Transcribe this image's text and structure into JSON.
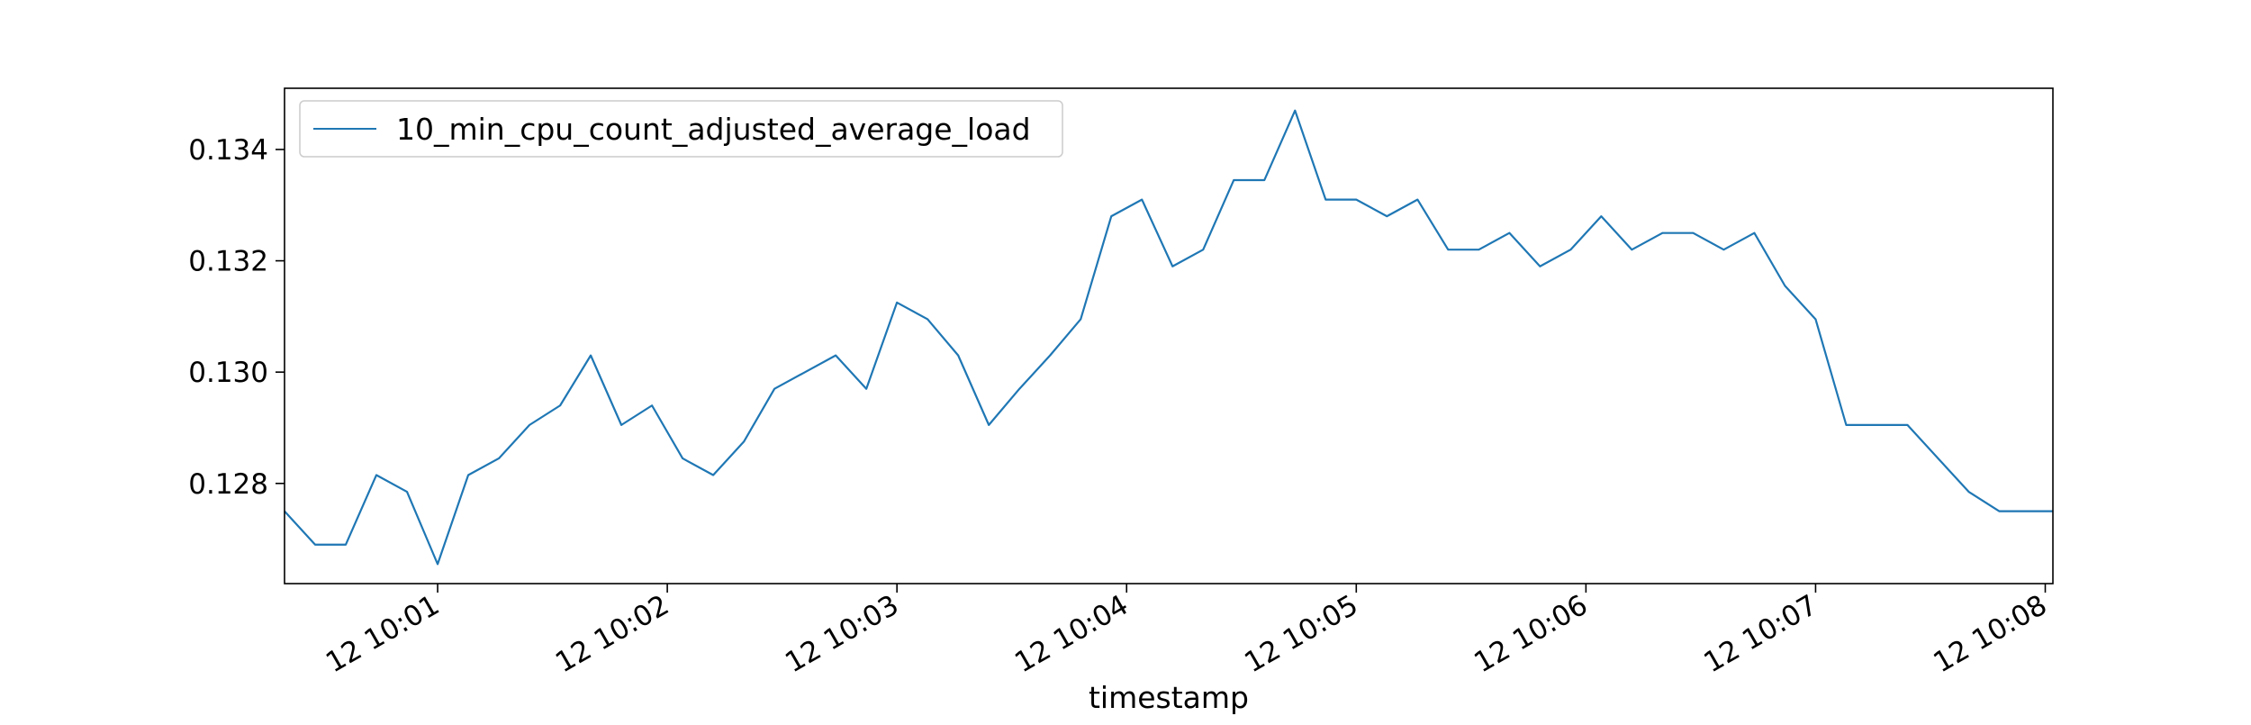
{
  "chart_data": {
    "type": "line",
    "title": "",
    "xlabel": "timestamp",
    "ylabel": "",
    "x_unit": "time (HH:MM:SS, day 12)",
    "xlim": [
      "10:00:20",
      "10:08:02"
    ],
    "ylim": [
      0.1262,
      0.1351
    ],
    "grid": false,
    "legend_position": "top-left",
    "series_color": "#1f77b4",
    "x_ticks": [
      {
        "value": "10:01:00",
        "label": "12 10:01"
      },
      {
        "value": "10:02:00",
        "label": "12 10:02"
      },
      {
        "value": "10:03:00",
        "label": "12 10:03"
      },
      {
        "value": "10:04:00",
        "label": "12 10:04"
      },
      {
        "value": "10:05:00",
        "label": "12 10:05"
      },
      {
        "value": "10:06:00",
        "label": "12 10:06"
      },
      {
        "value": "10:07:00",
        "label": "12 10:07"
      },
      {
        "value": "10:08:00",
        "label": "12 10:08"
      }
    ],
    "y_ticks": [
      {
        "value": 0.128,
        "label": "0.128"
      },
      {
        "value": 0.13,
        "label": "0.130"
      },
      {
        "value": 0.132,
        "label": "0.132"
      },
      {
        "value": 0.134,
        "label": "0.134"
      }
    ],
    "series": [
      {
        "name": "10_min_cpu_count_adjusted_average_load",
        "x": [
          "10:00:20",
          "10:00:28",
          "10:00:36",
          "10:00:44",
          "10:00:52",
          "10:01:00",
          "10:01:08",
          "10:01:16",
          "10:01:24",
          "10:01:32",
          "10:01:40",
          "10:01:48",
          "10:01:56",
          "10:02:04",
          "10:02:12",
          "10:02:20",
          "10:02:28",
          "10:02:36",
          "10:02:44",
          "10:02:52",
          "10:03:00",
          "10:03:08",
          "10:03:16",
          "10:03:24",
          "10:03:32",
          "10:03:40",
          "10:03:48",
          "10:03:56",
          "10:04:04",
          "10:04:12",
          "10:04:20",
          "10:04:28",
          "10:04:36",
          "10:04:44",
          "10:04:52",
          "10:05:00",
          "10:05:08",
          "10:05:16",
          "10:05:24",
          "10:05:32",
          "10:05:40",
          "10:05:48",
          "10:05:56",
          "10:06:04",
          "10:06:12",
          "10:06:20",
          "10:06:28",
          "10:06:36",
          "10:06:44",
          "10:06:52",
          "10:07:00",
          "10:07:08",
          "10:07:16",
          "10:07:24",
          "10:07:32",
          "10:07:40",
          "10:07:48",
          "10:07:56",
          "10:08:02"
        ],
        "y": [
          0.1275,
          0.1269,
          0.1269,
          0.12815,
          0.12785,
          0.12655,
          0.12815,
          0.12845,
          0.12905,
          0.1294,
          0.1303,
          0.12905,
          0.1294,
          0.12845,
          0.12815,
          0.12875,
          0.1297,
          0.13,
          0.1303,
          0.1297,
          0.13125,
          0.13095,
          0.1303,
          0.12905,
          0.1297,
          0.1303,
          0.13095,
          0.1328,
          0.1331,
          0.1319,
          0.1322,
          0.13345,
          0.13345,
          0.1347,
          0.1331,
          0.1331,
          0.1328,
          0.1331,
          0.1322,
          0.1322,
          0.1325,
          0.1319,
          0.1322,
          0.1328,
          0.1322,
          0.1325,
          0.1325,
          0.1322,
          0.1325,
          0.13155,
          0.13095,
          0.12905,
          0.12905,
          0.12905,
          0.12845,
          0.12785,
          0.1275,
          0.1275,
          0.1275
        ]
      }
    ]
  }
}
